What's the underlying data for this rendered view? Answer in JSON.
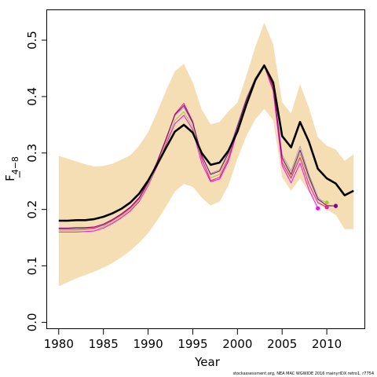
{
  "chart_data": {
    "type": "line",
    "xlabel": "Year",
    "ylabel": {
      "base": "F",
      "subscript": "4−8"
    },
    "caption": "stockassessment.org, NEA MAC WGWIDE 2016 mainyrIDX retro1, r7754",
    "xlim": [
      1978.7,
      2014.3
    ],
    "ylim": [
      -0.012,
      0.553
    ],
    "xticks": [
      1980,
      1985,
      1990,
      1995,
      2000,
      2005,
      2010
    ],
    "yticks": [
      0.0,
      0.1,
      0.2,
      0.3,
      0.4,
      0.5
    ],
    "ytick_labels": [
      "0.0",
      "0.1",
      "0.2",
      "0.3",
      "0.4",
      "0.5"
    ],
    "grid": false,
    "colors": {
      "band": "#f5deb3",
      "main": "#000000",
      "retro": [
        "#ff00ff",
        "#9acd32",
        "#9aa6b4",
        "#ff1493",
        "#8b008b"
      ]
    },
    "band": {
      "x": [
        1980,
        1981,
        1982,
        1983,
        1984,
        1985,
        1986,
        1987,
        1988,
        1989,
        1990,
        1991,
        1992,
        1993,
        1994,
        1995,
        1996,
        1997,
        1998,
        1999,
        2000,
        2001,
        2002,
        2003,
        2004,
        2005,
        2006,
        2007,
        2008,
        2009,
        2010,
        2011,
        2012,
        2013
      ],
      "lower": [
        0.064,
        0.071,
        0.078,
        0.084,
        0.09,
        0.097,
        0.105,
        0.115,
        0.127,
        0.141,
        0.158,
        0.18,
        0.205,
        0.232,
        0.245,
        0.24,
        0.221,
        0.207,
        0.214,
        0.243,
        0.29,
        0.33,
        0.36,
        0.378,
        0.358,
        0.257,
        0.233,
        0.255,
        0.231,
        0.21,
        0.2,
        0.19,
        0.165,
        0.165
      ],
      "upper": [
        0.295,
        0.29,
        0.285,
        0.28,
        0.276,
        0.277,
        0.281,
        0.288,
        0.296,
        0.313,
        0.337,
        0.372,
        0.41,
        0.445,
        0.458,
        0.425,
        0.377,
        0.351,
        0.355,
        0.374,
        0.389,
        0.437,
        0.488,
        0.531,
        0.493,
        0.39,
        0.37,
        0.422,
        0.38,
        0.328,
        0.313,
        0.306,
        0.286,
        0.298
      ]
    },
    "series": [
      {
        "role": "main",
        "x": [
          1980,
          1981,
          1982,
          1983,
          1984,
          1985,
          1986,
          1987,
          1988,
          1989,
          1990,
          1991,
          1992,
          1993,
          1994,
          1995,
          1996,
          1997,
          1998,
          1999,
          2000,
          2001,
          2002,
          2003,
          2004,
          2005,
          2006,
          2007,
          2008,
          2009,
          2010,
          2011,
          2012,
          2013
        ],
        "values": [
          0.18,
          0.18,
          0.181,
          0.181,
          0.183,
          0.187,
          0.193,
          0.201,
          0.212,
          0.228,
          0.251,
          0.279,
          0.309,
          0.338,
          0.35,
          0.336,
          0.3,
          0.279,
          0.283,
          0.304,
          0.338,
          0.386,
          0.429,
          0.455,
          0.425,
          0.33,
          0.31,
          0.355,
          0.32,
          0.272,
          0.255,
          0.246,
          0.225,
          0.233
        ],
        "color": "#000000"
      },
      {
        "role": "retro",
        "x": [
          1980,
          1981,
          1982,
          1983,
          1984,
          1985,
          1986,
          1987,
          1988,
          1989,
          1990,
          1991,
          1992,
          1993,
          1994,
          1995,
          1996,
          1997,
          1998,
          1999,
          2000,
          2001,
          2002,
          2003,
          2004,
          2005,
          2006,
          2007,
          2008,
          2009
        ],
        "values": [
          0.16,
          0.16,
          0.16,
          0.161,
          0.162,
          0.167,
          0.175,
          0.185,
          0.197,
          0.214,
          0.242,
          0.276,
          0.315,
          0.352,
          0.367,
          0.341,
          0.282,
          0.249,
          0.254,
          0.286,
          0.339,
          0.389,
          0.427,
          0.455,
          0.41,
          0.278,
          0.247,
          0.282,
          0.235,
          0.202
        ],
        "color": "#ff00ff"
      },
      {
        "role": "retro",
        "x": [
          1980,
          1981,
          1982,
          1983,
          1984,
          1985,
          1986,
          1987,
          1988,
          1989,
          1990,
          1991,
          1992,
          1993,
          1994,
          1995,
          1996,
          1997,
          1998,
          1999,
          2000,
          2001,
          2002,
          2003,
          2004,
          2005,
          2006,
          2007,
          2008,
          2009,
          2010
        ],
        "values": [
          0.163,
          0.163,
          0.163,
          0.164,
          0.165,
          0.169,
          0.177,
          0.187,
          0.199,
          0.216,
          0.244,
          0.278,
          0.318,
          0.358,
          0.373,
          0.346,
          0.288,
          0.256,
          0.262,
          0.294,
          0.344,
          0.393,
          0.43,
          0.456,
          0.415,
          0.288,
          0.258,
          0.298,
          0.254,
          0.219,
          0.212
        ],
        "color": "#9acd32"
      },
      {
        "role": "retro",
        "x": [
          1980,
          1981,
          1982,
          1983,
          1984,
          1985,
          1986,
          1987,
          1988,
          1989,
          1990,
          1991,
          1992,
          1993,
          1994,
          1995,
          1996,
          1997,
          1998,
          1999,
          2000,
          2001,
          2002,
          2003,
          2004,
          2005,
          2006,
          2007,
          2008,
          2009,
          2010,
          2011
        ],
        "values": [
          0.166,
          0.166,
          0.167,
          0.167,
          0.168,
          0.173,
          0.181,
          0.191,
          0.203,
          0.22,
          0.248,
          0.283,
          0.324,
          0.366,
          0.381,
          0.352,
          0.294,
          0.264,
          0.27,
          0.303,
          0.35,
          0.397,
          0.433,
          0.457,
          0.42,
          0.297,
          0.268,
          0.312,
          0.262,
          0.222,
          0.205,
          0.207
        ],
        "color": "#9aa6b4"
      },
      {
        "role": "retro",
        "x": [
          1980,
          1981,
          1982,
          1983,
          1984,
          1985,
          1986,
          1987,
          1988,
          1989,
          1990,
          1991,
          1992,
          1993,
          1994,
          1995,
          1996,
          1997,
          1998,
          1999,
          2000,
          2001,
          2002,
          2003,
          2004,
          2005,
          2006,
          2007,
          2008,
          2009,
          2010
        ],
        "values": [
          0.165,
          0.165,
          0.165,
          0.166,
          0.167,
          0.172,
          0.18,
          0.19,
          0.202,
          0.219,
          0.247,
          0.282,
          0.323,
          0.369,
          0.388,
          0.356,
          0.291,
          0.251,
          0.257,
          0.29,
          0.342,
          0.391,
          0.429,
          0.455,
          0.412,
          0.283,
          0.255,
          0.292,
          0.245,
          0.212,
          0.204
        ],
        "color": "#ff1493"
      },
      {
        "role": "retro",
        "x": [
          1980,
          1981,
          1982,
          1983,
          1984,
          1985,
          1986,
          1987,
          1988,
          1989,
          1990,
          1991,
          1992,
          1993,
          1994,
          1995,
          1996,
          1997,
          1998,
          1999,
          2000,
          2001,
          2002,
          2003,
          2004,
          2005,
          2006,
          2007,
          2008,
          2009,
          2010,
          2011
        ],
        "values": [
          0.167,
          0.167,
          0.168,
          0.168,
          0.169,
          0.174,
          0.182,
          0.192,
          0.204,
          0.221,
          0.249,
          0.284,
          0.325,
          0.368,
          0.384,
          0.354,
          0.296,
          0.262,
          0.268,
          0.3,
          0.347,
          0.395,
          0.432,
          0.456,
          0.418,
          0.292,
          0.262,
          0.305,
          0.258,
          0.218,
          0.207,
          0.206
        ],
        "color": "#8b008b"
      }
    ],
    "endpoints": [
      {
        "x": 2009,
        "y": 0.202,
        "color": "#ff00ff"
      },
      {
        "x": 2010,
        "y": 0.212,
        "color": "#9acd32"
      },
      {
        "x": 2011,
        "y": 0.207,
        "color": "#9aa6b4"
      },
      {
        "x": 2010,
        "y": 0.204,
        "color": "#ff1493"
      },
      {
        "x": 2011,
        "y": 0.206,
        "color": "#8b008b"
      }
    ]
  }
}
